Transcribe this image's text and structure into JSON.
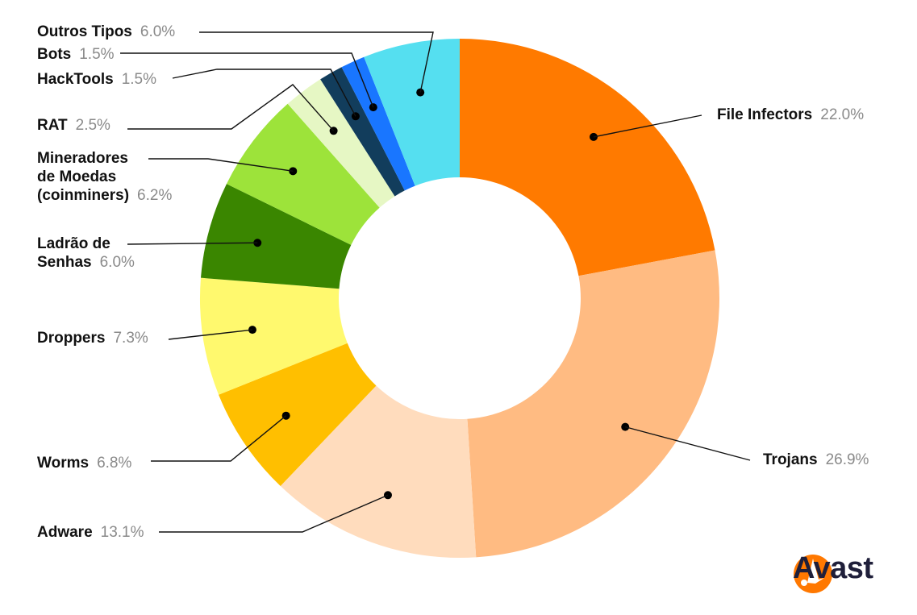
{
  "chart_data": {
    "type": "pie",
    "donut": true,
    "title": "",
    "categories": [
      "File Infectors",
      "Trojans",
      "Adware",
      "Worms",
      "Droppers",
      "Ladrão de Senhas",
      "Mineradores de Moedas (coinminers)",
      "RAT",
      "HackTools",
      "Bots",
      "Outros Tipos"
    ],
    "values": [
      22.0,
      26.9,
      13.1,
      6.8,
      7.3,
      6.0,
      6.2,
      2.5,
      1.5,
      1.5,
      6.0
    ],
    "colors": [
      "#ff7a00",
      "#ffbb82",
      "#ffdcbd",
      "#ffbf00",
      "#fff96e",
      "#3a8600",
      "#9de33a",
      "#e6f7c4",
      "#123d5c",
      "#1976ff",
      "#55dff0"
    ],
    "labels": [
      {
        "lines": [
          "File Infectors"
        ],
        "value": "22.0%"
      },
      {
        "lines": [
          "Trojans"
        ],
        "value": "26.9%"
      },
      {
        "lines": [
          "Adware"
        ],
        "value": "13.1%"
      },
      {
        "lines": [
          "Worms"
        ],
        "value": "6.8%"
      },
      {
        "lines": [
          "Droppers"
        ],
        "value": "7.3%"
      },
      {
        "lines": [
          "Ladrão de",
          "Senhas"
        ],
        "value": "6.0%"
      },
      {
        "lines": [
          "Mineradores",
          "de Moedas",
          "(coinminers)"
        ],
        "value": "6.2%"
      },
      {
        "lines": [
          "RAT"
        ],
        "value": "2.5%"
      },
      {
        "lines": [
          "HackTools"
        ],
        "value": "1.5%"
      },
      {
        "lines": [
          "Bots"
        ],
        "value": "1.5%"
      },
      {
        "lines": [
          "Outros Tipos"
        ],
        "value": "6.0%"
      }
    ]
  },
  "brand": {
    "name": "Avast",
    "logo_icon": "avast-logo-icon",
    "color": "#ff7800"
  }
}
